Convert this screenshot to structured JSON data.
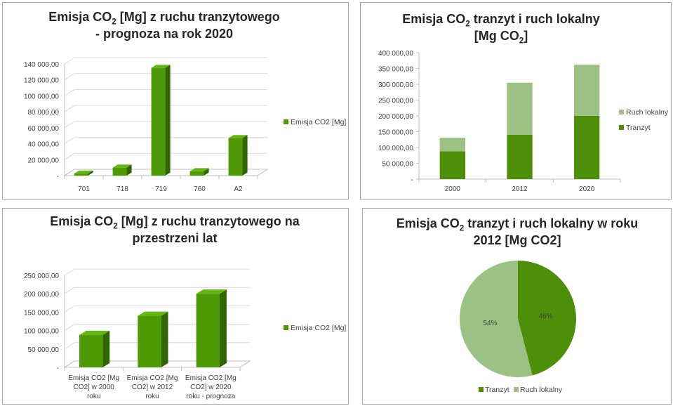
{
  "chart_data": [
    {
      "id": "c1",
      "type": "bar",
      "title_pre": "Emisja CO",
      "title_sub": "2",
      "title_post": " [Mg] z ruchu tranzytowego - prognoza na rok 2020",
      "categories": [
        "701",
        "718",
        "719",
        "760",
        "A2"
      ],
      "series": [
        {
          "name": "Emisja CO2 [Mg]",
          "values": [
            2500,
            10000,
            135000,
            5500,
            47000
          ]
        }
      ],
      "yticks": [
        "-",
        "20 000,00",
        "40 000,00",
        "60 000,00",
        "80 000,00",
        "100 000,00",
        "120 000,00",
        "140 000,00"
      ],
      "ylim": [
        0,
        140000
      ],
      "legend": "right"
    },
    {
      "id": "c2",
      "type": "bar",
      "title_line1_pre": "Emisja CO",
      "title_line1_sub": "2",
      "title_line1_post": " tranzyt i ruch lokalny",
      "title_line2_pre": "[Mg CO",
      "title_line2_sub": "2",
      "title_line2_post": "]",
      "categories": [
        "2000",
        "2012",
        "2020"
      ],
      "series": [
        {
          "name": "Tranzyt",
          "values": [
            88000,
            140000,
            200000
          ]
        },
        {
          "name": "Ruch lokalny",
          "values": [
            43000,
            165000,
            162000
          ]
        }
      ],
      "stacked": true,
      "yticks": [
        "-",
        "50 000,00",
        "100 000,00",
        "150 000,00",
        "200 000,00",
        "250 000,00",
        "300 000,00",
        "350 000,00",
        "400 000,00"
      ],
      "ylim": [
        0,
        400000
      ],
      "legend": "right"
    },
    {
      "id": "c3",
      "type": "bar",
      "title_line1_pre": "Emisja CO",
      "title_line1_sub": "2",
      "title_line1_post": " [Mg] z ruchu tranzytowego na",
      "title_line2": "przestrzeni lat",
      "categories": [
        "Emisja CO2 [Mg CO2] w 2000 roku",
        "Emisja CO2 [Mg CO2] w 2012 roku",
        "Emisja CO2 [Mg CO2] w 2020 roku - prognoza"
      ],
      "category_lines": [
        [
          "Emisja CO2 [Mg",
          "CO2] w 2000",
          "roku"
        ],
        [
          "Emisja CO2 [Mg",
          "CO2] w 2012",
          "roku"
        ],
        [
          "Emisja CO2 [Mg",
          "CO2] w 2020",
          "roku - prognoza"
        ]
      ],
      "series": [
        {
          "name": "Emisja CO2 [Mg]",
          "values": [
            88000,
            140000,
            200000
          ]
        }
      ],
      "yticks": [
        "-",
        "50 000,00",
        "100 000,00",
        "150 000,00",
        "200 000,00",
        "250 000,00"
      ],
      "ylim": [
        0,
        250000
      ],
      "legend": "right"
    },
    {
      "id": "c4",
      "type": "pie",
      "title_line1_pre": "Emisja CO",
      "title_line1_sub": "2",
      "title_line1_post": " tranzyt i ruch lokalny w roku",
      "title_line2": "2012 [Mg CO2]",
      "slices": [
        {
          "name": "Tranzyt",
          "value": 46,
          "label": "46%"
        },
        {
          "name": "Ruch lokalny",
          "value": 54,
          "label": "54%"
        }
      ],
      "legend": "bottom"
    }
  ],
  "colors": {
    "bar_front": "#4e9a06",
    "bar_top": "#62b512",
    "bar_side": "#2f6600",
    "tranzyt": "#4e8f0a",
    "ruch_lokalny": "#9bc283",
    "grid": "#d9d9d9",
    "floor": "#bfbfbf"
  }
}
